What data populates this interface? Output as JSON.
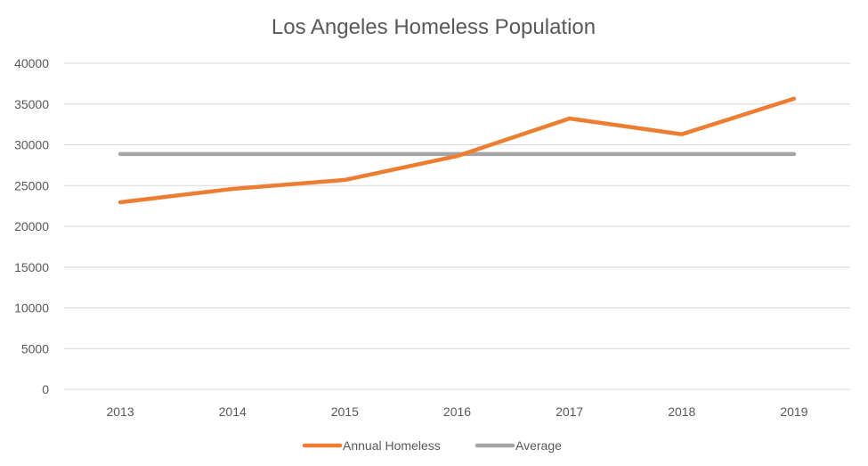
{
  "chart_data": {
    "type": "line",
    "title": "Los Angeles Homeless Population",
    "xlabel": "",
    "ylabel": "",
    "categories": [
      "2013",
      "2014",
      "2015",
      "2016",
      "2017",
      "2018",
      "2019"
    ],
    "ylim": [
      0,
      40000
    ],
    "yticks": [
      "0",
      "5000",
      "10000",
      "15000",
      "20000",
      "25000",
      "30000",
      "35000",
      "40000"
    ],
    "grid": true,
    "legend_position": "bottom",
    "series": [
      {
        "name": "Annual Homeless",
        "color": "#ED7D31",
        "values": [
          22950,
          24590,
          25690,
          28620,
          33220,
          31290,
          35660
        ]
      },
      {
        "name": "Average",
        "color": "#A5A5A5",
        "values": [
          28860,
          28860,
          28860,
          28860,
          28860,
          28860,
          28860
        ]
      }
    ]
  }
}
